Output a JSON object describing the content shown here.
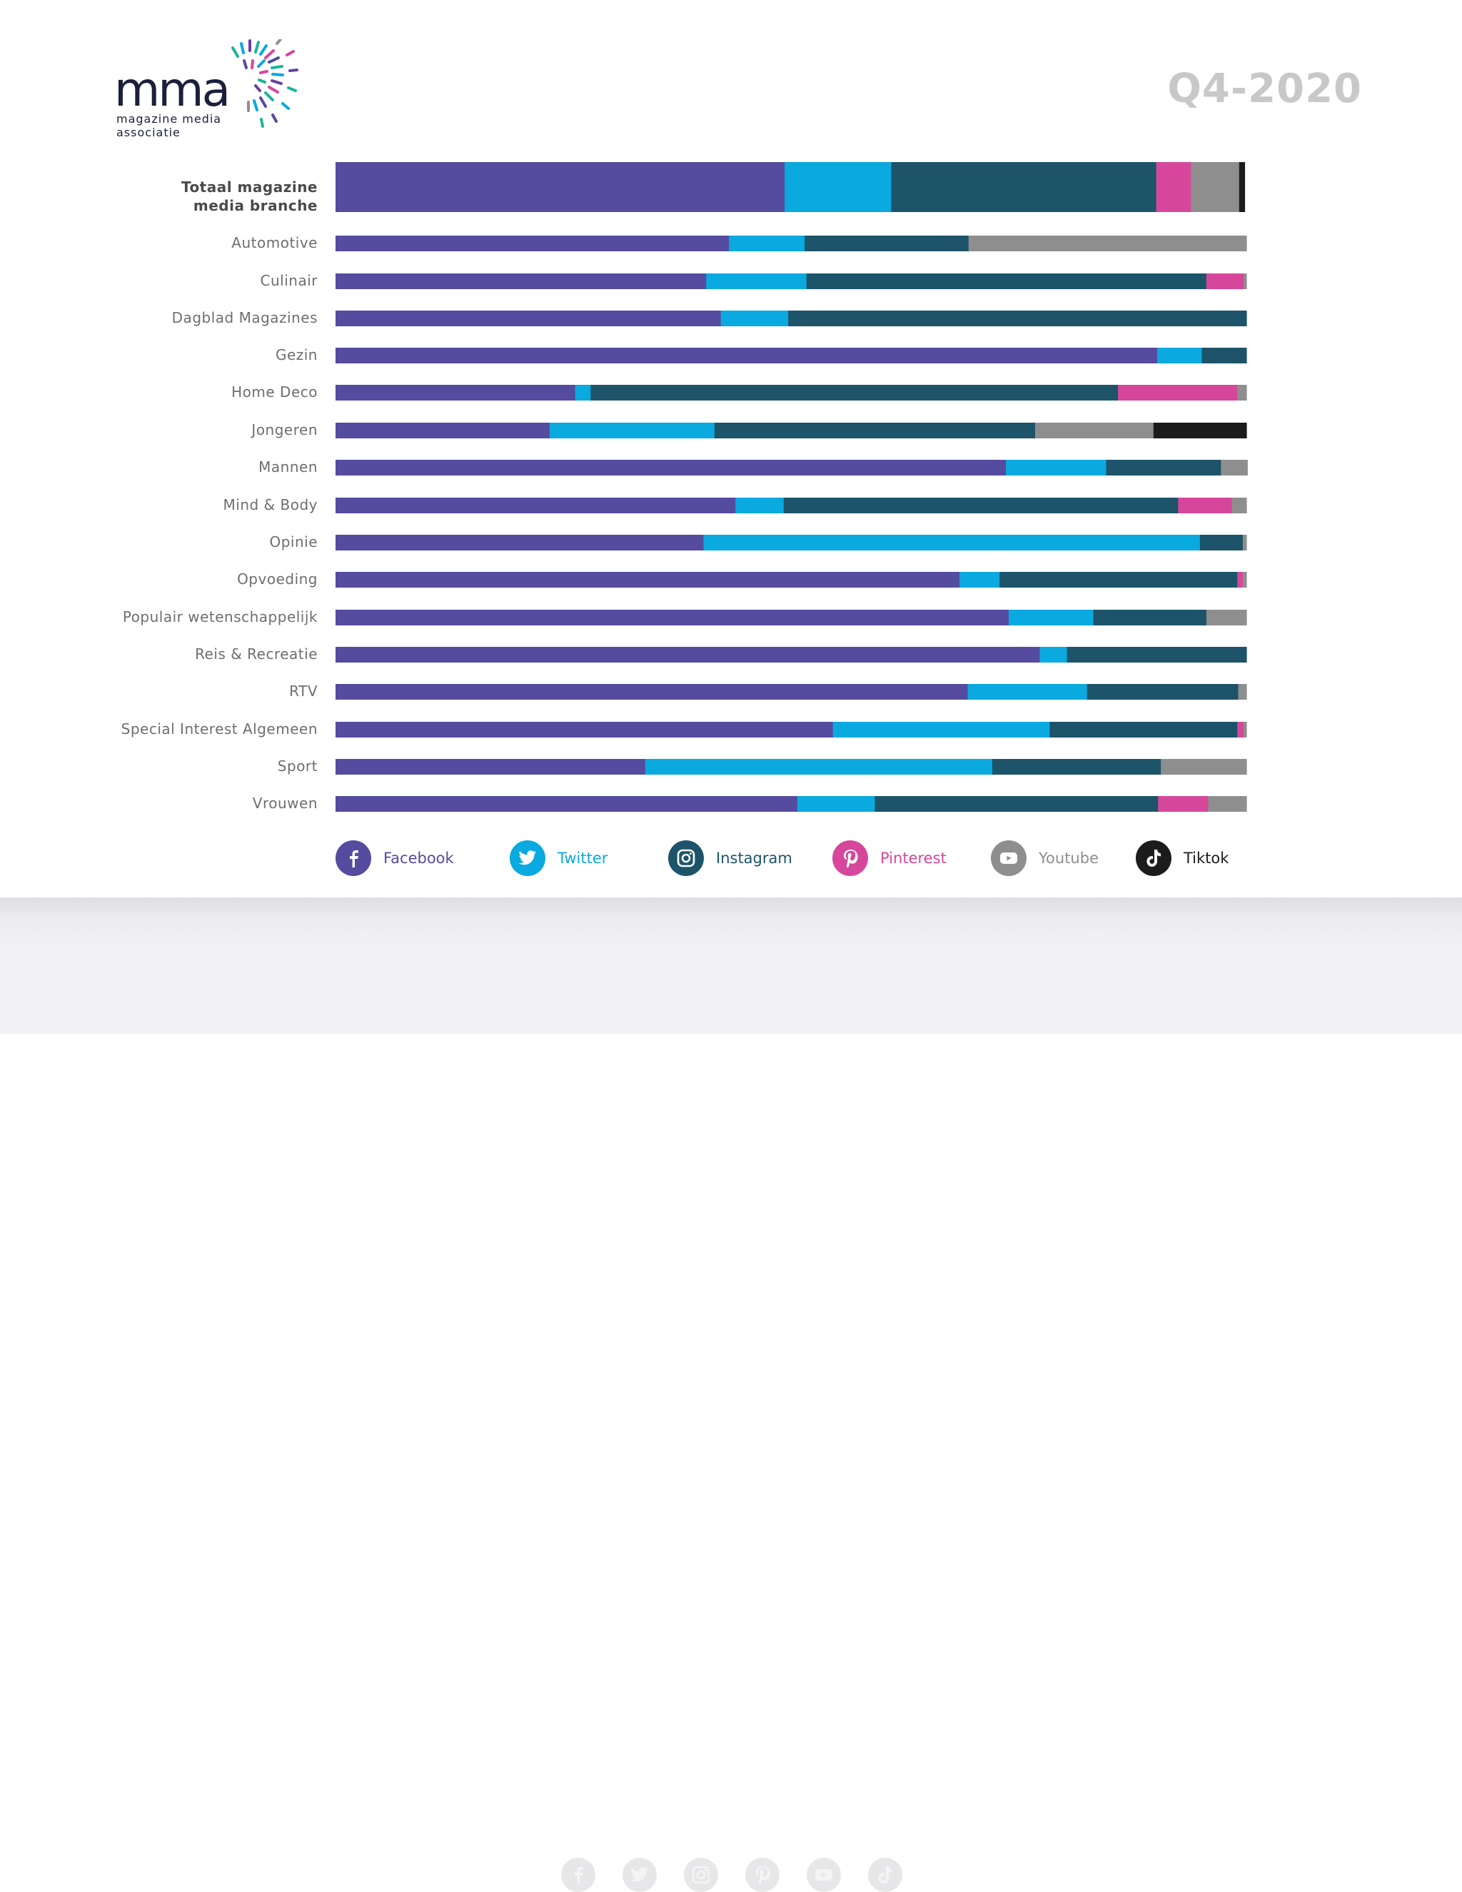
{
  "brand": {
    "logo_word": "mma",
    "logo_sub_line1": "magazine media",
    "logo_sub_line2": "associatie"
  },
  "period": "Q4-2020",
  "colors": {
    "Facebook": "#554b9f",
    "Twitter": "#0aa9df",
    "Instagram": "#1d546a",
    "Pinterest": "#d6479b",
    "Youtube": "#8e8e8e",
    "Tiktok": "#1c1c1c"
  },
  "chart_data": {
    "type": "bar",
    "orientation": "horizontal",
    "stacked": true,
    "normalized": true,
    "xlim": [
      0,
      100
    ],
    "categories": [
      "Totaal magazine media branche",
      "Automotive",
      "Culinair",
      "Dagblad Magazines",
      "Gezin",
      "Home Deco",
      "Jongeren",
      "Mannen",
      "Mind & Body",
      "Opinie",
      "Opvoeding",
      "Populair wetenschappelijk",
      "Reis & Recreatie",
      "RTV",
      "Special Interest Algemeen",
      "Sport",
      "Vrouwen"
    ],
    "series": [
      {
        "name": "Facebook",
        "values": [
          49.3,
          43.2,
          40.7,
          42.3,
          90.2,
          26.3,
          23.5,
          73.6,
          43.9,
          40.4,
          68.5,
          73.9,
          77.3,
          69.4,
          54.6,
          34.0,
          50.7
        ]
      },
      {
        "name": "Twitter",
        "values": [
          11.7,
          8.3,
          11.0,
          7.4,
          4.9,
          1.7,
          18.1,
          11.0,
          5.3,
          54.5,
          4.4,
          9.3,
          3.0,
          13.1,
          23.8,
          38.1,
          8.5
        ]
      },
      {
        "name": "Instagram",
        "values": [
          29.1,
          18.0,
          43.9,
          50.3,
          4.9,
          57.9,
          35.2,
          12.6,
          43.3,
          4.7,
          26.1,
          12.4,
          19.7,
          16.6,
          20.6,
          18.5,
          31.1
        ]
      },
      {
        "name": "Pinterest",
        "values": [
          3.8,
          0,
          4.1,
          0,
          0,
          13.1,
          0,
          0,
          5.9,
          0,
          0.6,
          0,
          0,
          0,
          0.7,
          0,
          5.5
        ]
      },
      {
        "name": "Youtube",
        "values": [
          5.3,
          30.5,
          0.3,
          0,
          0,
          1.0,
          13.0,
          2.9,
          1.6,
          0.4,
          0.4,
          4.4,
          0,
          0.9,
          0.3,
          9.4,
          4.2
        ]
      },
      {
        "name": "Tiktok",
        "values": [
          0.6,
          0,
          0,
          0,
          0,
          0,
          10.2,
          0,
          0,
          0,
          0,
          0,
          0,
          0,
          0,
          0,
          0
        ]
      }
    ]
  },
  "legend": [
    {
      "label": "Facebook",
      "icon": "facebook-icon"
    },
    {
      "label": "Twitter",
      "icon": "twitter-icon"
    },
    {
      "label": "Instagram",
      "icon": "instagram-icon"
    },
    {
      "label": "Pinterest",
      "icon": "pinterest-icon"
    },
    {
      "label": "Youtube",
      "icon": "youtube-icon"
    },
    {
      "label": "Tiktok",
      "icon": "tiktok-icon"
    }
  ],
  "footer_icons": [
    "facebook-icon",
    "twitter-icon",
    "instagram-icon",
    "pinterest-icon",
    "youtube-icon",
    "tiktok-icon"
  ]
}
